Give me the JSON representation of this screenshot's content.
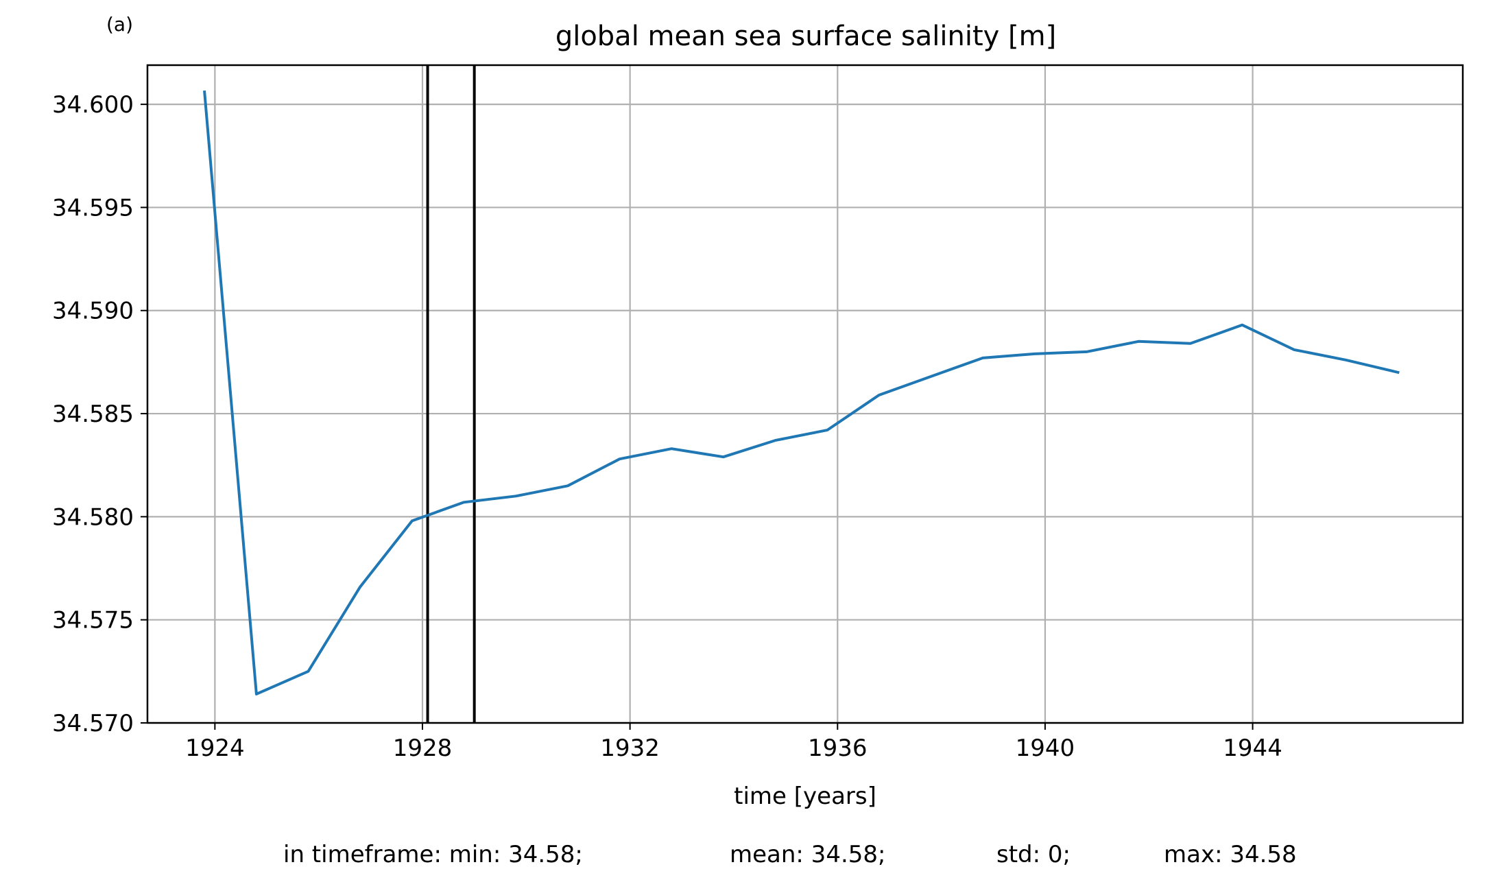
{
  "panel_label": "(a)",
  "footer": {
    "min": "in timeframe: min: 34.58;",
    "mean": "mean: 34.58;",
    "std": "std: 0;",
    "max": "max: 34.58"
  },
  "chart_data": {
    "type": "line",
    "title": "global mean sea surface salinity [m]",
    "xlabel": "time [years]",
    "ylabel": "",
    "xlim": [
      1922.7,
      1948.05
    ],
    "ylim": [
      34.57,
      34.6019
    ],
    "xticks": [
      1924,
      1928,
      1932,
      1936,
      1940,
      1944
    ],
    "yticks": [
      34.57,
      34.575,
      34.58,
      34.585,
      34.59,
      34.595,
      34.6
    ],
    "ytick_labels": [
      "34.570",
      "34.575",
      "34.580",
      "34.585",
      "34.590",
      "34.595",
      "34.600"
    ],
    "grid": true,
    "vlines": [
      1928.1,
      1929.0
    ],
    "series": [
      {
        "color": "#1f77b4",
        "x": [
          1923.8,
          1924.8,
          1925.8,
          1926.8,
          1927.8,
          1928.8,
          1929.8,
          1930.8,
          1931.8,
          1932.8,
          1933.8,
          1934.8,
          1935.8,
          1936.8,
          1937.8,
          1938.8,
          1939.8,
          1940.8,
          1941.8,
          1942.8,
          1943.8,
          1944.8,
          1945.8,
          1946.8
        ],
        "y": [
          34.6006,
          34.5714,
          34.5725,
          34.5766,
          34.5798,
          34.5807,
          34.581,
          34.5815,
          34.5828,
          34.5833,
          34.5829,
          34.5837,
          34.5842,
          34.5859,
          34.5868,
          34.5877,
          34.5879,
          34.588,
          34.5885,
          34.5884,
          34.5893,
          34.5881,
          34.5876,
          34.587
        ]
      }
    ]
  }
}
